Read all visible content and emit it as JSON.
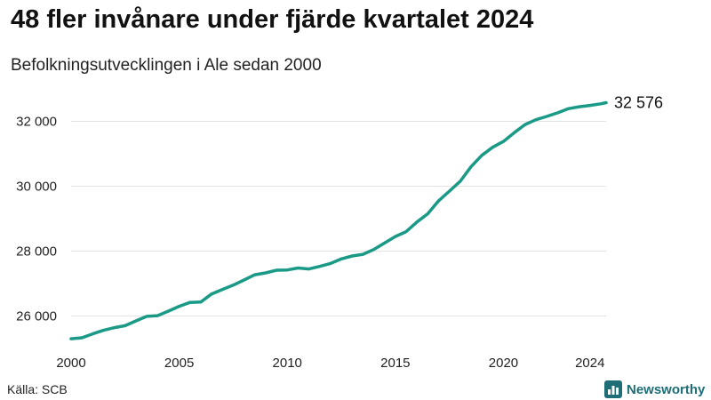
{
  "title": "48 fler invånare under fjärde kvartalet 2024",
  "subtitle": "Befolkningsutvecklingen i Ale sedan 2000",
  "source": "Källa: SCB",
  "brand": "Newsworthy",
  "colors": {
    "line": "#1a9a86",
    "grid": "#e3e3e3",
    "brand": "#1e6e77"
  },
  "chart_data": {
    "type": "line",
    "x_unit": "year",
    "ylim": [
      25000,
      33000
    ],
    "yticks": [
      26000,
      28000,
      30000,
      32000
    ],
    "ytick_labels": [
      "26 000",
      "28 000",
      "30 000",
      "32 000"
    ],
    "xticks": [
      2000,
      2005,
      2010,
      2015,
      2020,
      2024
    ],
    "xtick_labels": [
      "2000",
      "2005",
      "2010",
      "2015",
      "2020",
      "2024"
    ],
    "end_label": "32 576",
    "grid": true,
    "series": [
      {
        "x": [
          2000.0,
          2000.5,
          2001.0,
          2001.5,
          2002.0,
          2002.5,
          2003.0,
          2003.5,
          2004.0,
          2004.5,
          2005.0,
          2005.5,
          2006.0,
          2006.5,
          2007.0,
          2007.5,
          2008.0,
          2008.5,
          2009.0,
          2009.5,
          2010.0,
          2010.5,
          2011.0,
          2011.5,
          2012.0,
          2012.5,
          2013.0,
          2013.5,
          2014.0,
          2014.5,
          2015.0,
          2015.5,
          2016.0,
          2016.5,
          2017.0,
          2017.5,
          2018.0,
          2018.5,
          2019.0,
          2019.5,
          2020.0,
          2020.5,
          2021.0,
          2021.5,
          2022.0,
          2022.5,
          2023.0,
          2023.5,
          2024.0,
          2024.5,
          2024.75
        ],
        "values": [
          25300,
          25330,
          25450,
          25560,
          25640,
          25700,
          25850,
          25990,
          26010,
          26150,
          26300,
          26420,
          26430,
          26680,
          26820,
          26950,
          27110,
          27270,
          27330,
          27410,
          27420,
          27480,
          27450,
          27530,
          27620,
          27760,
          27850,
          27900,
          28050,
          28250,
          28450,
          28600,
          28900,
          29150,
          29550,
          29850,
          30150,
          30600,
          30950,
          31200,
          31380,
          31650,
          31900,
          32050,
          32150,
          32260,
          32390,
          32450,
          32490,
          32540,
          32576
        ]
      }
    ]
  }
}
